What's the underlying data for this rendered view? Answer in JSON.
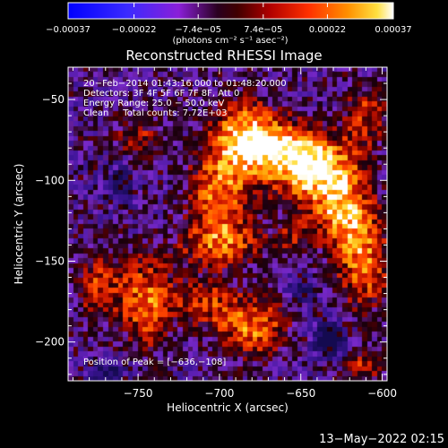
{
  "chart_data": {
    "type": "heatmap",
    "title": "Reconstructed RHESSI Image",
    "xlabel": "Heliocentric X (arcsec)",
    "ylabel": "Heliocentric Y (arcsec)",
    "xlim": [
      -793,
      -597
    ],
    "ylim": [
      -224,
      -30
    ],
    "x_ticks": [
      -750,
      -700,
      -650,
      -600
    ],
    "x_tick_labels": [
      "−750",
      "−700",
      "−650",
      "−600"
    ],
    "y_ticks": [
      -50,
      -100,
      -150,
      -200
    ],
    "y_tick_labels": [
      "−50",
      "−100",
      "−150",
      "−200"
    ],
    "colorbar": {
      "min": -0.00037,
      "max": 0.00037,
      "ticks": [
        -0.00037,
        -0.00022,
        -7.4e-05,
        7.4e-05,
        0.00022,
        0.00037
      ],
      "tick_labels": [
        "−0.00037",
        "−0.00022",
        "−7.4e−05",
        "7.4e−05",
        "0.00022",
        "0.00037"
      ],
      "unit_label": "(photons cm⁻² s⁻¹ asec⁻²)"
    },
    "annotations": {
      "time_range": "20−Feb−2014 01:43:16.000 to 01:48:20.000",
      "detectors": "Detectors: 3F 4F 5F 6F 7F 8F, Att 0",
      "energy_range": "Energy Range: 25.0 − 50.0 keV",
      "algorithm": "Clean     Total counts: 7.72E+03",
      "peak": "Position of Peak = [−636,−108]"
    },
    "peak_position": [
      -636,
      -108
    ],
    "emission_regions": [
      {
        "x": -640,
        "y": -95,
        "amp": 1.0,
        "sx": 18,
        "sy": 14
      },
      {
        "x": -665,
        "y": -80,
        "amp": 0.85,
        "sx": 20,
        "sy": 12
      },
      {
        "x": -685,
        "y": -70,
        "amp": 0.7,
        "sx": 14,
        "sy": 16
      },
      {
        "x": -700,
        "y": -110,
        "amp": 0.75,
        "sx": 14,
        "sy": 20
      },
      {
        "x": -612,
        "y": -150,
        "amp": 0.75,
        "sx": 12,
        "sy": 22
      },
      {
        "x": -625,
        "y": -120,
        "amp": 0.7,
        "sx": 12,
        "sy": 14
      },
      {
        "x": -700,
        "y": -140,
        "amp": 0.55,
        "sx": 18,
        "sy": 10
      },
      {
        "x": -745,
        "y": -175,
        "amp": 0.75,
        "sx": 12,
        "sy": 20
      },
      {
        "x": -775,
        "y": -165,
        "amp": 0.55,
        "sx": 10,
        "sy": 14
      },
      {
        "x": -680,
        "y": -190,
        "amp": 0.75,
        "sx": 16,
        "sy": 14
      },
      {
        "x": -710,
        "y": -175,
        "amp": 0.5,
        "sx": 12,
        "sy": 10
      },
      {
        "x": -610,
        "y": -215,
        "amp": 0.5,
        "sx": 10,
        "sy": 8
      },
      {
        "x": -750,
        "y": -75,
        "amp": 0.45,
        "sx": 12,
        "sy": 12
      },
      {
        "x": -610,
        "y": -60,
        "amp": 0.55,
        "sx": 10,
        "sy": 14
      },
      {
        "x": -655,
        "y": -135,
        "amp": 0.35,
        "sx": 10,
        "sy": 10
      }
    ],
    "negative_regions": [
      {
        "x": -632,
        "y": -198,
        "amp": 0.8,
        "sx": 8,
        "sy": 8
      },
      {
        "x": -650,
        "y": -168,
        "amp": 0.6,
        "sx": 6,
        "sy": 6
      },
      {
        "x": -770,
        "y": -218,
        "amp": 0.5,
        "sx": 10,
        "sy": 6
      },
      {
        "x": -760,
        "y": -100,
        "amp": 0.4,
        "sx": 10,
        "sy": 10
      }
    ]
  },
  "footer": {
    "date_stamp": "13−May−2022 02:15"
  }
}
